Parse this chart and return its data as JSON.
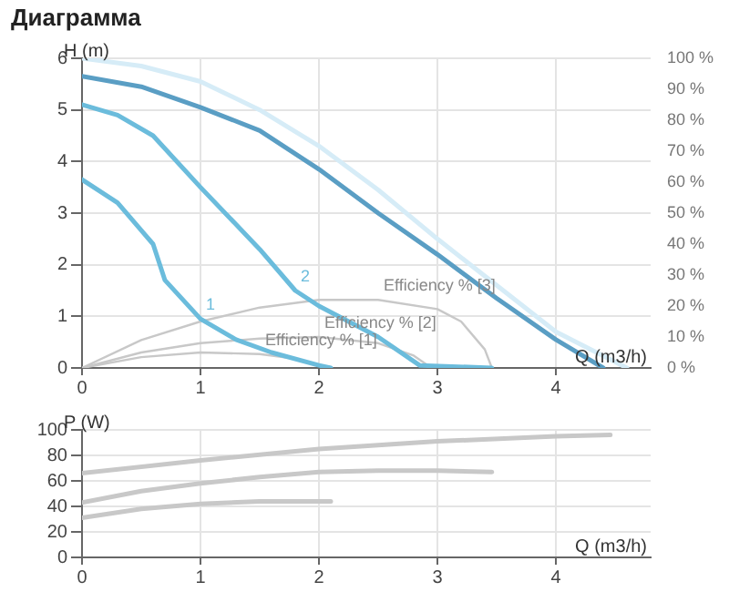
{
  "chart_data": [
    {
      "type": "line",
      "title": "Диаграмма",
      "xlabel": "Q (m3/h)",
      "ylabel": "H (m)",
      "xlim": [
        0,
        4.8
      ],
      "xticks": [
        0,
        1,
        2,
        3,
        4
      ],
      "ylim": [
        0,
        6
      ],
      "yticks": [
        0,
        1,
        2,
        3,
        4,
        5,
        6
      ],
      "y2lim": [
        0,
        100
      ],
      "y2ticks": [
        {
          "value": 0,
          "label": "0 %"
        },
        {
          "value": 10,
          "label": "10 %"
        },
        {
          "value": 20,
          "label": "20 %"
        },
        {
          "value": 30,
          "label": "30 %"
        },
        {
          "value": 40,
          "label": "40 %"
        },
        {
          "value": 50,
          "label": "50 %"
        },
        {
          "value": 60,
          "label": "60 %"
        },
        {
          "value": 70,
          "label": "70 %"
        },
        {
          "value": 80,
          "label": "80 %"
        },
        {
          "value": 90,
          "label": "90 %"
        },
        {
          "value": 100,
          "label": "100 %"
        }
      ],
      "grid": true,
      "legend": false,
      "marker": "none",
      "series": [
        {
          "color": "#d6ecf7",
          "x": [
            0,
            0.5,
            1,
            1.5,
            2,
            2.5,
            3,
            3.5,
            4,
            4.6
          ],
          "values": [
            6.0,
            5.85,
            5.55,
            5.0,
            4.3,
            3.45,
            2.5,
            1.6,
            0.7,
            0
          ]
        },
        {
          "color": "#5a9ec4",
          "x": [
            0,
            0.5,
            1,
            1.5,
            2,
            2.5,
            3,
            3.5,
            4,
            4.4
          ],
          "values": [
            5.65,
            5.45,
            5.05,
            4.6,
            3.85,
            3.0,
            2.2,
            1.35,
            0.55,
            0
          ]
        },
        {
          "name": "2",
          "color": "#6bbcdc",
          "x": [
            0,
            0.3,
            0.6,
            1,
            1.5,
            1.8,
            2,
            2.5,
            2.85,
            3.46
          ],
          "values": [
            5.1,
            4.9,
            4.5,
            3.5,
            2.3,
            1.5,
            1.2,
            0.6,
            0.05,
            0
          ]
        },
        {
          "name": "1",
          "color": "#6bbcdc",
          "x": [
            0,
            0.3,
            0.6,
            0.7,
            1,
            1.3,
            1.6,
            2,
            2.1
          ],
          "values": [
            3.65,
            3.2,
            2.4,
            1.7,
            0.95,
            0.55,
            0.3,
            0.05,
            0
          ]
        },
        {
          "name": "Efficiency % [3]",
          "axis": "y2",
          "color": "#c8c8c8",
          "x": [
            0,
            0.5,
            1,
            1.5,
            2,
            2.5,
            3,
            3.2,
            3.4,
            3.46
          ],
          "values": [
            0,
            9,
            15,
            19.5,
            22,
            22,
            19,
            15,
            6,
            0
          ]
        },
        {
          "name": "Efficiency % [2]",
          "axis": "y2",
          "color": "#c8c8c8",
          "x": [
            0,
            0.5,
            1,
            1.5,
            2,
            2.5,
            2.8,
            2.95
          ],
          "values": [
            0,
            5,
            8,
            9.5,
            10,
            8,
            4,
            0
          ]
        },
        {
          "name": "Efficiency % [1]",
          "axis": "y2",
          "color": "#c8c8c8",
          "x": [
            0,
            0.5,
            1,
            1.5,
            1.8,
            2.1
          ],
          "values": [
            0,
            3.5,
            5,
            4.5,
            3,
            0
          ]
        }
      ]
    },
    {
      "type": "line",
      "xlabel": "Q (m3/h)",
      "ylabel": "P (W)",
      "xlim": [
        0,
        4.8
      ],
      "xticks": [
        0,
        1,
        2,
        3,
        4
      ],
      "ylim": [
        0,
        100
      ],
      "yticks": [
        0,
        20,
        40,
        60,
        80,
        100
      ],
      "grid": true,
      "legend": false,
      "marker": "none",
      "series": [
        {
          "color": "#c8c8c8",
          "x": [
            0,
            1,
            2,
            3,
            4,
            4.46
          ],
          "values": [
            66,
            76,
            85,
            91,
            95,
            96
          ]
        },
        {
          "color": "#c8c8c8",
          "x": [
            0,
            0.5,
            1,
            1.5,
            2,
            2.5,
            3,
            3.46
          ],
          "values": [
            43,
            52,
            58,
            63,
            67,
            68,
            68,
            67
          ]
        },
        {
          "color": "#c8c8c8",
          "x": [
            0,
            0.5,
            1,
            1.5,
            2.1
          ],
          "values": [
            31,
            38,
            42,
            44,
            44
          ]
        }
      ]
    }
  ]
}
